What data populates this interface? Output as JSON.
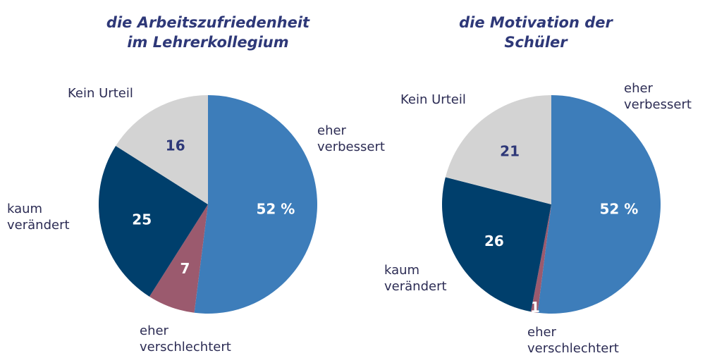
{
  "chart_data": [
    {
      "type": "pie",
      "title": "die Arbeitszufriedenheit im Lehrerkollegium",
      "categories": [
        "eher verbessert",
        "eher verschlechtert",
        "kaum verändert",
        "Kein Urteil"
      ],
      "values": [
        52,
        7,
        25,
        16
      ],
      "value_labels": [
        "52 %",
        "7",
        "25",
        "16"
      ],
      "colors": [
        "#3d7dba",
        "#9b5a6e",
        "#003f6c",
        "#d3d3d3"
      ]
    },
    {
      "type": "pie",
      "title": "die Motivation der Schüler",
      "categories": [
        "eher verbessert",
        "eher verschlechtert",
        "kaum verändert",
        "Kein Urteil"
      ],
      "values": [
        52,
        1,
        26,
        21
      ],
      "value_labels": [
        "52 %",
        "1",
        "26",
        "21"
      ],
      "colors": [
        "#3d7dba",
        "#9b5a6e",
        "#003f6c",
        "#d3d3d3"
      ]
    }
  ]
}
